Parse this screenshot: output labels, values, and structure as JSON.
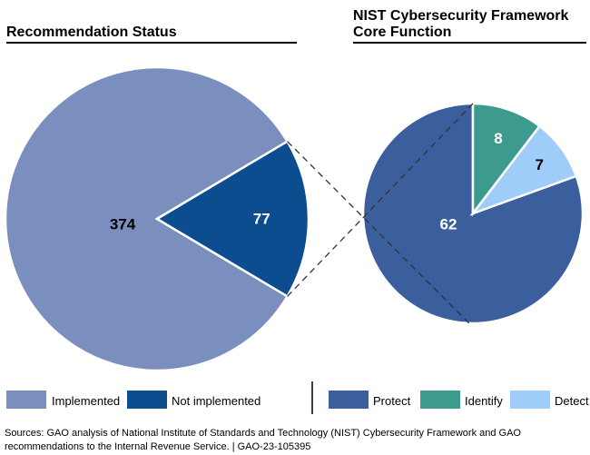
{
  "chart_data": [
    {
      "type": "pie",
      "title": "Recommendation Status",
      "categories": [
        "Implemented",
        "Not implemented"
      ],
      "values": [
        374,
        77
      ],
      "labels": [
        "374",
        "77"
      ]
    },
    {
      "type": "pie",
      "title": "NIST Cybersecurity Framework Core Function",
      "title_lines": [
        "NIST Cybersecurity Framework",
        "Core Function"
      ],
      "categories": [
        "Protect",
        "Identify",
        "Detect"
      ],
      "values": [
        62,
        8,
        7
      ],
      "labels": [
        "62",
        "8",
        "7"
      ]
    }
  ],
  "legend": {
    "left": [
      "Implemented",
      "Not implemented"
    ],
    "right": [
      "Protect",
      "Identify",
      "Detect"
    ]
  },
  "colors": {
    "implemented": "#7b8fbe",
    "not_implemented": "#0b4d8e",
    "protect": "#3a5f9c",
    "identify": "#3d9a8e",
    "detect": "#9ecdfa",
    "rule": "#000000",
    "leader": "#333333"
  },
  "source": {
    "line1": "Sources: GAO analysis of National Institute of Standards and Technology (NIST) Cybersecurity Framework and GAO",
    "line2": "recommendations to the Internal Revenue Service.  |  GAO-23-105395"
  }
}
